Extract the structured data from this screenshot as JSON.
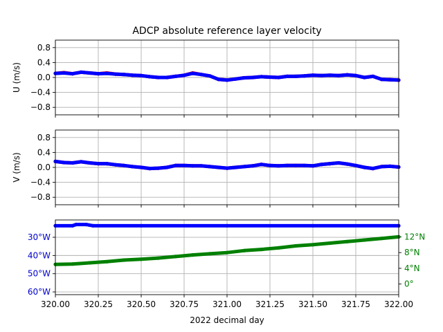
{
  "chart_data": {
    "type": "line",
    "title": "ADCP absolute reference layer velocity",
    "xlabel": "2022 decimal day",
    "xlim": [
      320.0,
      322.0
    ],
    "xticks": [
      320.0,
      320.25,
      320.5,
      320.75,
      321.0,
      321.25,
      321.5,
      321.75,
      322.0
    ],
    "xtick_labels": [
      "320.00",
      "320.25",
      "320.50",
      "320.75",
      "321.00",
      "321.25",
      "321.50",
      "321.75",
      "322.00"
    ],
    "grid": true,
    "panels": [
      {
        "ylabel": "U (m/s)",
        "ylim": [
          -1.0,
          1.0
        ],
        "yticks": [
          0.8,
          0.4,
          0.0,
          -0.4,
          -0.8
        ],
        "ytick_labels": [
          "0.8",
          "0.4",
          "0.0",
          "−0.4",
          "−0.8"
        ],
        "x": [
          320.0,
          320.05,
          320.1,
          320.15,
          320.2,
          320.25,
          320.3,
          320.35,
          320.4,
          320.45,
          320.5,
          320.55,
          320.6,
          320.65,
          320.7,
          320.75,
          320.8,
          320.85,
          320.9,
          320.95,
          321.0,
          321.05,
          321.1,
          321.15,
          321.2,
          321.25,
          321.3,
          321.35,
          321.4,
          321.45,
          321.5,
          321.55,
          321.6,
          321.65,
          321.7,
          321.75,
          321.8,
          321.85,
          321.9,
          321.95,
          322.0
        ],
        "series": [
          {
            "color": "#ff0000",
            "values": [
              0.11,
              0.13,
              0.1,
              0.14,
              0.12,
              0.1,
              0.12,
              0.09,
              0.08,
              0.06,
              0.05,
              0.02,
              0.0,
              0.0,
              0.03,
              0.06,
              0.12,
              0.08,
              0.04,
              -0.05,
              -0.07,
              -0.04,
              -0.01,
              0.0,
              0.02,
              0.01,
              0.0,
              0.03,
              0.03,
              0.04,
              0.06,
              0.05,
              0.06,
              0.05,
              0.07,
              0.05,
              0.0,
              0.03,
              -0.05,
              -0.06,
              -0.07
            ]
          },
          {
            "color": "#0000ff",
            "values": [
              0.11,
              0.12,
              0.1,
              0.14,
              0.12,
              0.1,
              0.11,
              0.09,
              0.08,
              0.06,
              0.05,
              0.02,
              0.0,
              0.0,
              0.03,
              0.06,
              0.11,
              0.08,
              0.04,
              -0.05,
              -0.07,
              -0.04,
              -0.01,
              0.0,
              0.02,
              0.01,
              0.0,
              0.03,
              0.03,
              0.04,
              0.06,
              0.05,
              0.06,
              0.05,
              0.07,
              0.05,
              0.0,
              0.03,
              -0.05,
              -0.06,
              -0.07
            ]
          }
        ]
      },
      {
        "ylabel": "V (m/s)",
        "ylim": [
          -1.0,
          1.0
        ],
        "yticks": [
          0.8,
          0.4,
          0.0,
          -0.4,
          -0.8
        ],
        "ytick_labels": [
          "0.8",
          "0.4",
          "0.0",
          "−0.4",
          "−0.8"
        ],
        "x": [
          320.0,
          320.05,
          320.1,
          320.15,
          320.2,
          320.25,
          320.3,
          320.35,
          320.4,
          320.45,
          320.5,
          320.55,
          320.6,
          320.65,
          320.7,
          320.75,
          320.8,
          320.85,
          320.9,
          320.95,
          321.0,
          321.05,
          321.1,
          321.15,
          321.2,
          321.25,
          321.3,
          321.35,
          321.4,
          321.45,
          321.5,
          321.55,
          321.6,
          321.65,
          321.7,
          321.75,
          321.8,
          321.85,
          321.9,
          321.95,
          322.0
        ],
        "series": [
          {
            "color": "#ff0000",
            "values": [
              0.16,
              0.13,
              0.12,
              0.15,
              0.12,
              0.1,
              0.1,
              0.07,
              0.05,
              0.02,
              0.0,
              -0.03,
              -0.02,
              0.0,
              0.05,
              0.05,
              0.04,
              0.04,
              0.02,
              0.0,
              -0.02,
              0.0,
              0.02,
              0.04,
              0.08,
              0.05,
              0.04,
              0.05,
              0.05,
              0.05,
              0.04,
              0.08,
              0.1,
              0.12,
              0.09,
              0.05,
              0.0,
              -0.03,
              0.02,
              0.03,
              0.01
            ]
          },
          {
            "color": "#0000ff",
            "values": [
              0.16,
              0.13,
              0.12,
              0.15,
              0.12,
              0.1,
              0.1,
              0.07,
              0.05,
              0.02,
              0.0,
              -0.03,
              -0.02,
              0.0,
              0.05,
              0.05,
              0.04,
              0.04,
              0.02,
              0.0,
              -0.02,
              0.0,
              0.02,
              0.04,
              0.08,
              0.05,
              0.04,
              0.05,
              0.05,
              0.05,
              0.04,
              0.08,
              0.1,
              0.12,
              0.09,
              0.05,
              0.0,
              -0.03,
              0.02,
              0.03,
              0.01
            ]
          }
        ]
      },
      {
        "ylabel": "",
        "left_axis": {
          "color": "#0000cc",
          "ylim": [
            -61.5,
            -20.5
          ],
          "yticks": [
            -30,
            -40,
            -50,
            -60
          ],
          "ytick_labels": [
            "30°W",
            "40°W",
            "50°W",
            "60°W"
          ]
        },
        "right_axis": {
          "color": "#008000",
          "ylim": [
            -2.7,
            16.3
          ],
          "yticks": [
            0,
            4,
            8,
            12
          ],
          "ytick_labels": [
            "0°",
            "4°N",
            "8°N",
            "12°N"
          ]
        },
        "x": [
          320.0,
          320.1,
          320.12,
          320.18,
          320.22,
          320.5,
          321.0,
          321.5,
          322.0
        ],
        "series": [
          {
            "axis": "left",
            "color": "#0000ff",
            "values": [
              -23.7,
              -23.7,
              -23.0,
              -23.0,
              -23.7,
              -23.7,
              -23.7,
              -23.7,
              -23.7
            ]
          }
        ],
        "series_right_x": [
          320.0,
          320.1,
          320.2,
          320.3,
          320.4,
          320.5,
          320.6,
          320.7,
          320.8,
          320.9,
          321.0,
          321.1,
          321.2,
          321.3,
          321.4,
          321.5,
          321.6,
          321.7,
          321.8,
          321.9,
          322.0
        ],
        "series_right": [
          {
            "axis": "right",
            "color": "#008000",
            "values": [
              5.0,
              5.1,
              5.4,
              5.7,
              6.1,
              6.3,
              6.6,
              7.0,
              7.4,
              7.7,
              8.0,
              8.5,
              8.8,
              9.2,
              9.7,
              10.0,
              10.4,
              10.8,
              11.2,
              11.6,
              12.0
            ]
          }
        ]
      }
    ]
  }
}
